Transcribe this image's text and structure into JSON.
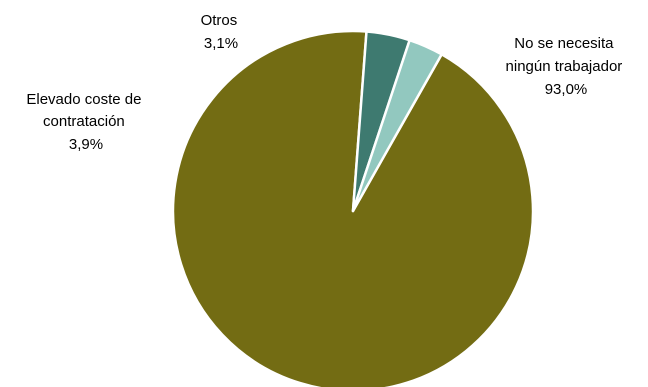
{
  "chart_data": {
    "type": "pie",
    "slices": [
      {
        "label_lines": [
          "No se necesita",
          "ningún trabajador"
        ],
        "value_label": "93,0%",
        "value": 93.0,
        "color": "#736c13"
      },
      {
        "label_lines": [
          "Elevado coste de",
          "contratación"
        ],
        "value_label": "3,9%",
        "value": 3.9,
        "color": "#3e7a70"
      },
      {
        "label_lines": [
          "Otros"
        ],
        "value_label": "3,1%",
        "value": 3.1,
        "color": "#92c8bf"
      }
    ],
    "slice_border_color": "#ffffff",
    "legend": "none"
  }
}
